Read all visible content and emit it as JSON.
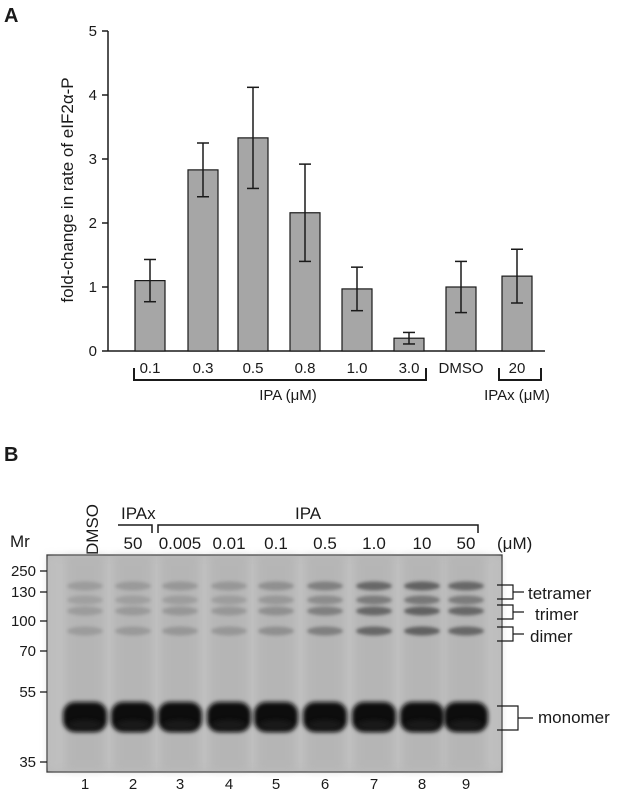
{
  "panel_a": {
    "letter": "A",
    "ylabel": "fold-change in rate of eIF2α-P",
    "group_label_ipa": "IPA (μM)",
    "group_label_ipax": "IPAx (μM)"
  },
  "chart_data": {
    "type": "bar",
    "categories": [
      "0.1",
      "0.3",
      "0.5",
      "0.8",
      "1.0",
      "3.0",
      "DMSO",
      "20"
    ],
    "values": [
      1.1,
      2.83,
      3.33,
      2.16,
      0.97,
      0.2,
      1.0,
      1.17
    ],
    "errors": [
      0.33,
      0.42,
      0.79,
      0.76,
      0.34,
      0.09,
      0.4,
      0.42
    ],
    "ylim": [
      0,
      5
    ],
    "yticks": [
      0,
      1,
      2,
      3,
      4,
      5
    ],
    "ylabel": "fold-change in rate of eIF2α-P",
    "xlabel": "",
    "groups": [
      {
        "label": "IPA (μM)",
        "members": [
          "0.1",
          "0.3",
          "0.5",
          "0.8",
          "1.0",
          "3.0"
        ]
      },
      {
        "label": "IPAx (μM)",
        "members": [
          "20"
        ]
      }
    ],
    "bar_color": "#a6a6a6",
    "grid": false
  },
  "panel_b": {
    "letter": "B",
    "mr_label": "Mr",
    "unit_label": "(μM)",
    "dmso_label": "DMSO",
    "ipax_label": "IPAx",
    "ipa_label": "IPA",
    "concentrations": [
      "50",
      "0.005",
      "0.01",
      "0.1",
      "0.5",
      "1.0",
      "10",
      "50"
    ],
    "markers": [
      "250",
      "130",
      "100",
      "70",
      "55",
      "35"
    ],
    "lanes": [
      "1",
      "2",
      "3",
      "4",
      "5",
      "6",
      "7",
      "8",
      "9"
    ],
    "band_labels": [
      "tetramer",
      "trimer",
      "dimer",
      "monomer"
    ]
  }
}
